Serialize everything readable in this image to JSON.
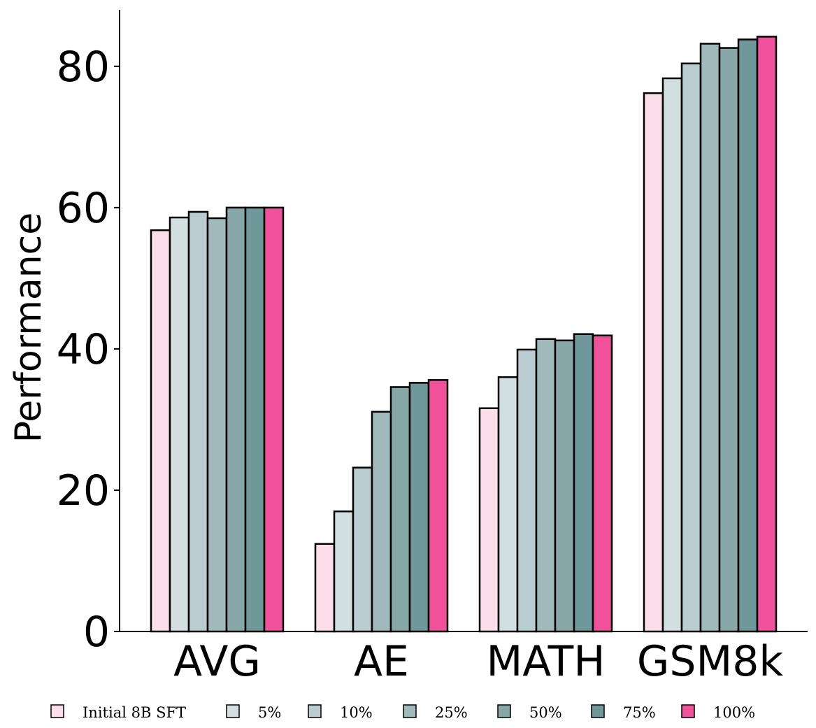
{
  "chart_data": {
    "type": "bar",
    "title": "",
    "xlabel": "",
    "ylabel": "Performance",
    "ylim": [
      0,
      88
    ],
    "yticks": [
      0,
      20,
      40,
      60,
      80
    ],
    "grid": false,
    "legend_position": "bottom",
    "categories": [
      "AVG",
      "AE",
      "MATH",
      "GSM8k"
    ],
    "series": [
      {
        "name": "Initial 8B SFT",
        "color": "#fcdeea",
        "values": [
          56.8,
          12.4,
          31.6,
          76.2
        ]
      },
      {
        "name": "5%",
        "color": "#d2dfe1",
        "values": [
          58.6,
          17.0,
          36.0,
          78.3
        ]
      },
      {
        "name": "10%",
        "color": "#b9cdd0",
        "values": [
          59.4,
          23.2,
          39.9,
          80.4
        ]
      },
      {
        "name": "25%",
        "color": "#a0b9bb",
        "values": [
          58.5,
          31.1,
          41.4,
          83.2
        ]
      },
      {
        "name": "50%",
        "color": "#88a7a9",
        "values": [
          60.0,
          34.6,
          41.2,
          82.6
        ]
      },
      {
        "name": "75%",
        "color": "#6e9899",
        "values": [
          60.0,
          35.2,
          42.1,
          83.8
        ]
      },
      {
        "name": "100%",
        "color": "#f0519a",
        "values": [
          60.0,
          35.6,
          41.9,
          84.2
        ]
      }
    ]
  }
}
